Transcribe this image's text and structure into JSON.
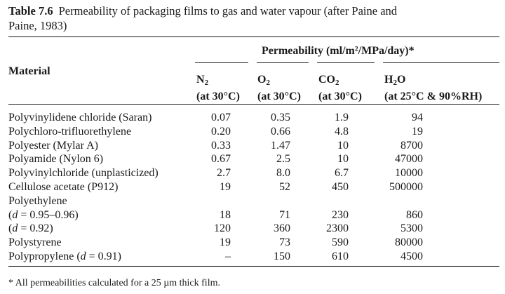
{
  "table": {
    "label": "Table 7.6",
    "caption_line1": "Permeability of packaging films to gas and water vapour (after Paine and",
    "caption_line2": "Paine, 1983)",
    "header": {
      "material": "Material",
      "permeability": "Permeability (ml/m²/MPa/day)*",
      "columns": [
        {
          "gas": "N",
          "sub": "2",
          "condition": "(at 30°C)"
        },
        {
          "gas": "O",
          "sub": "2",
          "condition": "(at 30°C)"
        },
        {
          "gas": "CO",
          "sub": "2",
          "condition": "(at 30°C)"
        },
        {
          "gas": "H",
          "sub": "2",
          "tail": "O",
          "condition": "(at 25°C & 90%RH)"
        }
      ]
    },
    "rows": [
      {
        "material": "Polyvinylidene chloride (Saran)",
        "n2": "0.07",
        "o2": "0.35",
        "co2": "1.9",
        "h2o": "94"
      },
      {
        "material": "Polychloro-trifluorethylene",
        "n2": "0.20",
        "o2": "0.66",
        "co2": "4.8",
        "h2o": "19"
      },
      {
        "material": "Polyester (Mylar A)",
        "n2": "0.33",
        "o2": "1.47",
        "co2": "10",
        "h2o": "8700"
      },
      {
        "material": "Polyamide (Nylon 6)",
        "n2": "0.67",
        "o2": "2.5",
        "co2": "10",
        "h2o": "47000"
      },
      {
        "material": "Polyvinylchloride (unplasticized)",
        "n2": "2.7",
        "o2": "8.0",
        "co2": "6.7",
        "h2o": "10000"
      },
      {
        "material": "Cellulose acetate (P912)",
        "n2": "19",
        "o2": "52",
        "co2": "450",
        "h2o": "500000"
      },
      {
        "material": "Polyethylene",
        "n2": "",
        "o2": "",
        "co2": "",
        "h2o": ""
      },
      {
        "material_var": "d",
        "material": " = 0.95–0.96)",
        "material_prefix": "(",
        "n2": "18",
        "o2": "71",
        "co2": "230",
        "h2o": "860"
      },
      {
        "material_var": "d",
        "material": " = 0.92)",
        "material_prefix": "(",
        "n2": "120",
        "o2": "360",
        "co2": "2300",
        "h2o": "5300"
      },
      {
        "material": "Polystyrene",
        "n2": "19",
        "o2": "73",
        "co2": "590",
        "h2o": "80000"
      },
      {
        "material_var": "d",
        "material": " = 0.91)",
        "material_prefix": "Polypropylene (",
        "n2": "–",
        "o2": "150",
        "co2": "610",
        "h2o": "4500"
      }
    ],
    "footnote": "*  All permeabilities calculated for a 25 µm thick film."
  }
}
